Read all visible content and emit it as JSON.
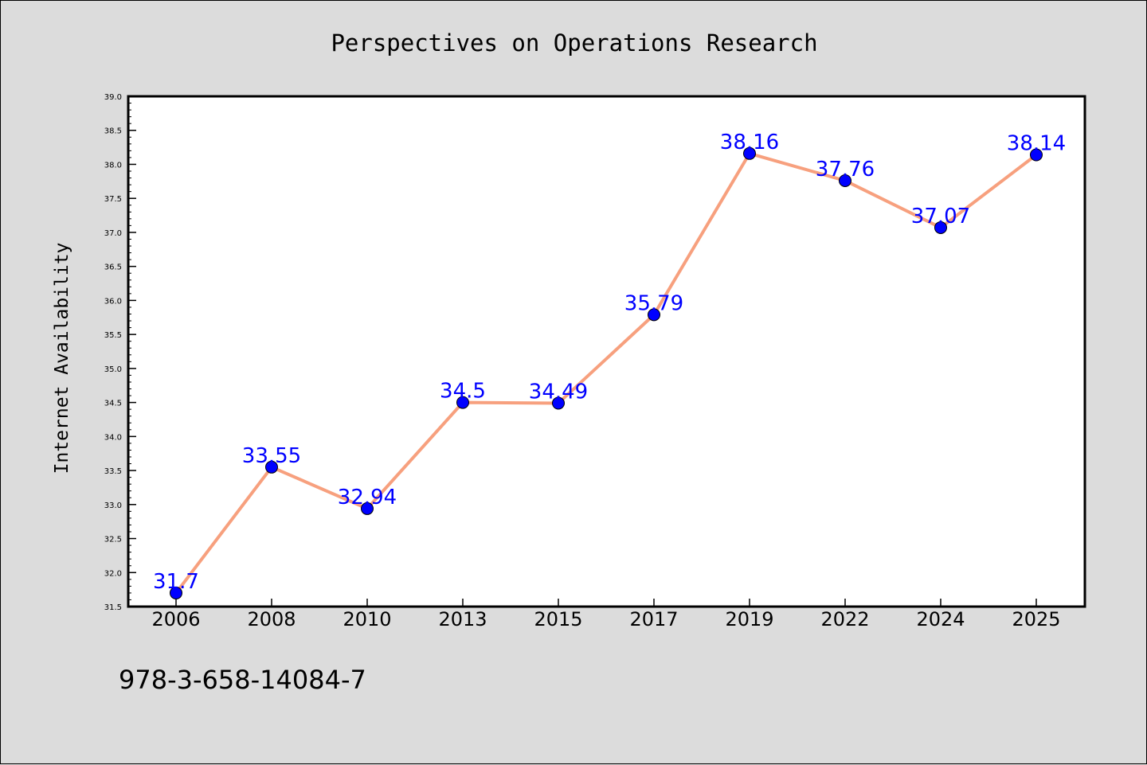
{
  "chart_data": {
    "type": "line",
    "title": "Perspectives on Operations Research",
    "ylabel": "Internet Availability",
    "xlabel": "",
    "categories": [
      "2006",
      "2008",
      "2010",
      "2013",
      "2015",
      "2017",
      "2019",
      "2022",
      "2024",
      "2025"
    ],
    "series": [
      {
        "values": [
          31.7,
          33.55,
          32.94,
          34.5,
          34.49,
          35.79,
          38.16,
          37.76,
          37.07,
          38.14
        ],
        "labels": [
          "31.7",
          "33.55",
          "32.94",
          "34.5",
          "34.49",
          "35.79",
          "38.16",
          "37.76",
          "37.07",
          "38.14"
        ],
        "line_color": "#f7a07e",
        "marker_color": "#0000ff"
      }
    ],
    "ylim": [
      31.5,
      39.0
    ],
    "yticks": [
      "31.5",
      "32.0",
      "32.5",
      "33.0",
      "33.5",
      "34.0",
      "34.5",
      "35.0",
      "35.5",
      "36.0",
      "36.5",
      "37.0",
      "37.5",
      "38.0",
      "38.5",
      "39.0"
    ],
    "grid": false,
    "legend": "none"
  },
  "footer": {
    "isbn": "978-3-658-14084-7"
  },
  "colors": {
    "background": "#dcdcdc",
    "plot_background": "#ffffff",
    "data_label": "#0000ff"
  }
}
